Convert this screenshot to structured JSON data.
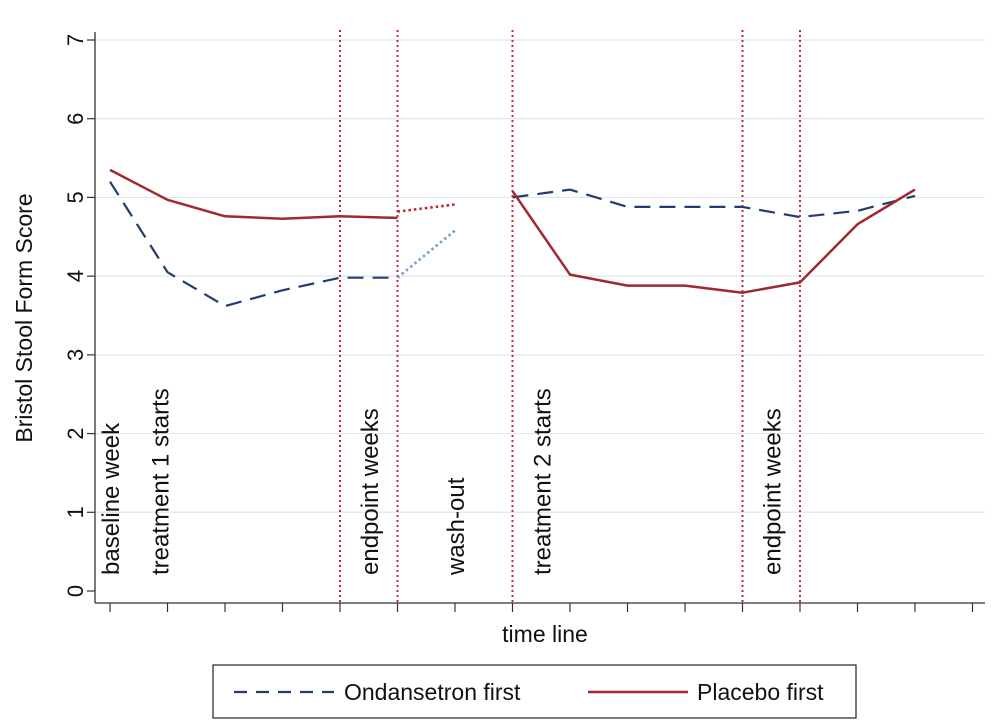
{
  "chart_data": {
    "type": "line",
    "title": "",
    "xlabel": "time line",
    "ylabel": "Bristol Stool Form Score",
    "ylim": [
      0,
      7
    ],
    "yticks": [
      "0",
      "1",
      "2",
      "3",
      "4",
      "5",
      "6",
      "7"
    ],
    "xlim": [
      -0.25,
      15
    ],
    "x_tick_positions": [
      0,
      1,
      2,
      3,
      4,
      5,
      6,
      7,
      8,
      9,
      10,
      11,
      12,
      13,
      14,
      15
    ],
    "grid": true,
    "legend_position": "bottom",
    "colors": {
      "ondansetron": "#1f3d6e",
      "ondansetron_washout": "#6f9fd0",
      "placebo": "#9e2a2f",
      "placebo_washout": "#c0282f",
      "marker_lines": "#c8283a",
      "grid": "#dfe7ee"
    },
    "vertical_markers": [
      4,
      5,
      7,
      11,
      12
    ],
    "annotations": [
      {
        "text": "baseline week",
        "x": 0
      },
      {
        "text": "treatment 1 starts",
        "x": 1
      },
      {
        "text": "endpoint weeks",
        "x": 4.5
      },
      {
        "text": "wash-out",
        "x": 6
      },
      {
        "text": "treatment 2 starts",
        "x": 7.5
      },
      {
        "text": "endpoint weeks",
        "x": 11.5
      }
    ],
    "series": [
      {
        "name": "Ondansetron first",
        "style": "dashed",
        "segments": [
          {
            "x": [
              0,
              1,
              2,
              3,
              4,
              5
            ],
            "y": [
              5.2,
              4.05,
              3.62,
              3.82,
              3.98,
              3.98
            ],
            "style": "dashed"
          },
          {
            "x": [
              5,
              6
            ],
            "y": [
              3.98,
              4.58
            ],
            "style": "dotted"
          },
          {
            "x": [
              7,
              8,
              9,
              10,
              11,
              12,
              13,
              14
            ],
            "y": [
              5.0,
              5.1,
              4.88,
              4.88,
              4.88,
              4.75,
              4.83,
              5.02
            ],
            "style": "dashed"
          }
        ]
      },
      {
        "name": "Placebo first",
        "style": "solid",
        "segments": [
          {
            "x": [
              0,
              1,
              2,
              3,
              4,
              5
            ],
            "y": [
              5.35,
              4.97,
              4.76,
              4.73,
              4.76,
              4.74
            ],
            "style": "solid"
          },
          {
            "x": [
              5,
              6
            ],
            "y": [
              4.82,
              4.91
            ],
            "style": "dotted"
          },
          {
            "x": [
              7,
              8,
              9,
              10,
              11,
              12,
              13,
              14
            ],
            "y": [
              5.08,
              4.02,
              3.88,
              3.88,
              3.79,
              3.92,
              4.66,
              5.1
            ],
            "style": "solid"
          }
        ]
      }
    ]
  }
}
